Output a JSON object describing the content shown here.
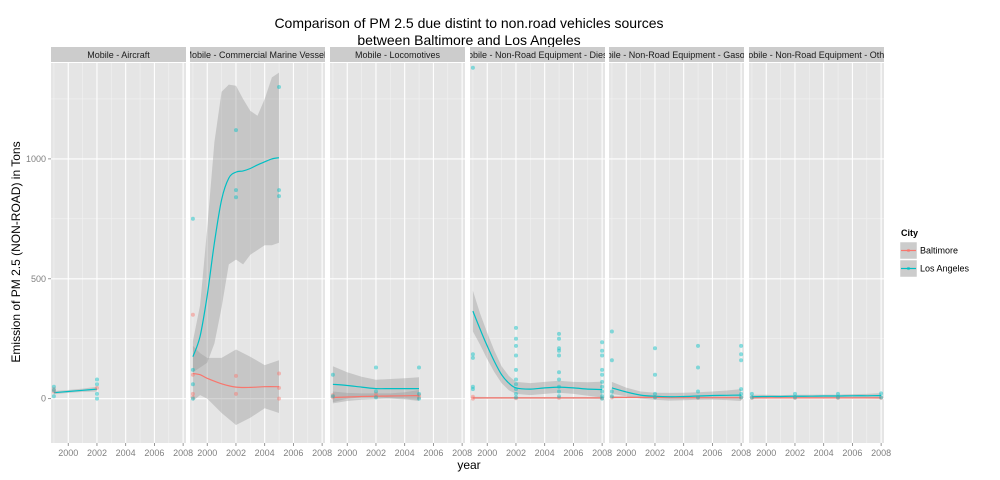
{
  "chart_data": {
    "type": "scatter",
    "title_line1": "Comparison of PM 2.5 due distint to non.road vehicles sources",
    "title_line2": "between Baltimore and Los Angeles",
    "xlabel": "year",
    "ylabel": "Emission of PM 2.5 (NON-ROAD) in Tons",
    "xlim": [
      1998.8,
      2008.2
    ],
    "ylim": [
      -185,
      1400
    ],
    "x_ticks": [
      2000,
      2002,
      2004,
      2006,
      2008
    ],
    "x_tick_labels": [
      "2000",
      "2002",
      "2004",
      "2006",
      "2008"
    ],
    "y_ticks": [
      0,
      500,
      1000
    ],
    "y_tick_labels": [
      "0",
      "500",
      "1000"
    ],
    "grid": true,
    "legend": {
      "title": "City",
      "placement": "right",
      "entries": [
        {
          "label": "Baltimore",
          "color": "#F8766D"
        },
        {
          "label": "Los Angeles",
          "color": "#00BFC4"
        }
      ]
    },
    "colors": {
      "baltimore": "#F8766D",
      "los_angeles": "#00BFC4",
      "ribbon": "#999999",
      "panel_bg": "#E5E5E5",
      "strip_bg": "#CCCCCC"
    },
    "panels": [
      {
        "strip": "Mobile - Aircraft",
        "points": {
          "baltimore": [
            [
              1999,
              40
            ],
            [
              1999,
              30
            ],
            [
              2002,
              45
            ]
          ],
          "los_angeles": [
            [
              1999,
              50
            ],
            [
              1999,
              35
            ],
            [
              1999,
              10
            ],
            [
              2002,
              80
            ],
            [
              2002,
              60
            ],
            [
              2002,
              20
            ],
            [
              2002,
              0
            ]
          ]
        },
        "smooth": {
          "los_angeles": {
            "x": [
              1999,
              2000,
              2001,
              2002
            ],
            "y": [
              25,
              30,
              35,
              40
            ],
            "lo": [
              18,
              24,
              28,
              30
            ],
            "hi": [
              32,
              36,
              42,
              50
            ]
          }
        }
      },
      {
        "strip": "Mobile - Commercial Marine Vessels",
        "points": {
          "baltimore": [
            [
              1999,
              350
            ],
            [
              1999,
              100
            ],
            [
              1999,
              20
            ],
            [
              1999,
              5
            ],
            [
              2002,
              95
            ],
            [
              2002,
              20
            ],
            [
              2005,
              105
            ],
            [
              2005,
              45
            ],
            [
              2005,
              0
            ]
          ],
          "los_angeles": [
            [
              1999,
              750
            ],
            [
              1999,
              120
            ],
            [
              1999,
              60
            ],
            [
              1999,
              0
            ],
            [
              2002,
              1120
            ],
            [
              2002,
              870
            ],
            [
              2002,
              840
            ],
            [
              2005,
              1300
            ],
            [
              2005,
              870
            ],
            [
              2005,
              845
            ]
          ]
        },
        "smooth": {
          "baltimore": {
            "x": [
              1999,
              1999.5,
              2000,
              2001,
              2002,
              2003,
              2004,
              2005
            ],
            "y": [
              105,
              100,
              85,
              62,
              48,
              47,
              50,
              50
            ],
            "lo": [
              -10,
              15,
              0,
              -60,
              -110,
              -80,
              -40,
              -60
            ],
            "hi": [
              220,
              190,
              170,
              170,
              205,
              175,
              140,
              160
            ]
          },
          "los_angeles": {
            "x": [
              1999,
              1999.5,
              2000,
              2000.5,
              2001,
              2001.5,
              2002,
              2002.5,
              2003,
              2003.5,
              2004,
              2004.5,
              2005
            ],
            "y": [
              175,
              260,
              430,
              650,
              830,
              920,
              945,
              950,
              960,
              975,
              988,
              1000,
              1005
            ],
            "lo": [
              110,
              130,
              150,
              230,
              380,
              560,
              580,
              560,
              600,
              620,
              640,
              640,
              650
            ],
            "hi": [
              240,
              390,
              710,
              1070,
              1280,
              1310,
              1305,
              1250,
              1200,
              1180,
              1250,
              1340,
              1360
            ]
          }
        }
      },
      {
        "strip": "Mobile - Locomotives",
        "points": {
          "baltimore": [
            [
              1999,
              15
            ],
            [
              1999,
              5
            ],
            [
              2002,
              20
            ],
            [
              2002,
              10
            ],
            [
              2005,
              15
            ],
            [
              2005,
              5
            ]
          ],
          "los_angeles": [
            [
              1999,
              100
            ],
            [
              1999,
              10
            ],
            [
              2002,
              130
            ],
            [
              2002,
              30
            ],
            [
              2002,
              5
            ],
            [
              2005,
              130
            ],
            [
              2005,
              20
            ],
            [
              2005,
              0
            ]
          ]
        },
        "smooth": {
          "baltimore": {
            "x": [
              1999,
              2000,
              2001,
              2002,
              2003,
              2004,
              2005
            ],
            "y": [
              5,
              7,
              9,
              10,
              11,
              12,
              13
            ],
            "lo": [
              -20,
              -10,
              -5,
              -2,
              0,
              -3,
              -10
            ],
            "hi": [
              30,
              24,
              22,
              22,
              22,
              27,
              36
            ]
          },
          "los_angeles": {
            "x": [
              1999,
              2000,
              2001,
              2002,
              2003,
              2004,
              2005
            ],
            "y": [
              60,
              55,
              48,
              42,
              42,
              42,
              42
            ],
            "lo": [
              -15,
              0,
              5,
              5,
              2,
              0,
              -5
            ],
            "hi": [
              135,
              110,
              91,
              79,
              82,
              85,
              89
            ]
          }
        }
      },
      {
        "strip": "Mobile - Non-Road Equipment - Diesel",
        "points": {
          "baltimore": [
            [
              1999,
              0
            ],
            [
              1999,
              8
            ],
            [
              2002,
              2
            ],
            [
              2005,
              3
            ],
            [
              2008,
              2
            ]
          ],
          "los_angeles": [
            [
              1999,
              1380
            ],
            [
              1999,
              185
            ],
            [
              1999,
              170
            ],
            [
              1999,
              50
            ],
            [
              1999,
              40
            ],
            [
              2002,
              295
            ],
            [
              2002,
              250
            ],
            [
              2002,
              220
            ],
            [
              2002,
              180
            ],
            [
              2002,
              120
            ],
            [
              2002,
              80
            ],
            [
              2002,
              60
            ],
            [
              2002,
              40
            ],
            [
              2002,
              20
            ],
            [
              2002,
              5
            ],
            [
              2005,
              270
            ],
            [
              2005,
              250
            ],
            [
              2005,
              210
            ],
            [
              2005,
              200
            ],
            [
              2005,
              180
            ],
            [
              2005,
              110
            ],
            [
              2005,
              80
            ],
            [
              2005,
              50
            ],
            [
              2005,
              30
            ],
            [
              2005,
              10
            ],
            [
              2008,
              235
            ],
            [
              2008,
              200
            ],
            [
              2008,
              180
            ],
            [
              2008,
              120
            ],
            [
              2008,
              100
            ],
            [
              2008,
              70
            ],
            [
              2008,
              50
            ],
            [
              2008,
              30
            ],
            [
              2008,
              10
            ],
            [
              2008,
              0
            ]
          ]
        },
        "smooth": {
          "baltimore": {
            "x": [
              1999,
              2000,
              2001,
              2002,
              2003,
              2004,
              2005,
              2006,
              2007,
              2008
            ],
            "y": [
              3,
              3,
              3,
              3,
              3,
              3,
              3,
              3,
              3,
              3
            ],
            "lo": [
              -2,
              -1,
              -1,
              -1,
              -1,
              -1,
              -1,
              -1,
              -1,
              -2
            ],
            "hi": [
              8,
              7,
              7,
              7,
              7,
              7,
              7,
              7,
              7,
              8
            ]
          },
          "los_angeles": {
            "x": [
              1999,
              1999.5,
              2000,
              2000.5,
              2001,
              2001.5,
              2002,
              2003,
              2004,
              2005,
              2006,
              2007,
              2008
            ],
            "y": [
              365,
              290,
              220,
              155,
              100,
              65,
              45,
              40,
              45,
              48,
              45,
              40,
              38
            ],
            "lo": [
              280,
              225,
              165,
              110,
              65,
              35,
              20,
              15,
              20,
              25,
              20,
              12,
              5
            ],
            "hi": [
              450,
              355,
              275,
              200,
              135,
              95,
              70,
              65,
              70,
              75,
              70,
              68,
              71
            ]
          }
        }
      },
      {
        "strip": "Mobile - Non-Road Equipment - Gasoline",
        "points": {
          "baltimore": [
            [
              1999,
              5
            ],
            [
              2002,
              5
            ],
            [
              2005,
              4
            ],
            [
              2008,
              4
            ]
          ],
          "los_angeles": [
            [
              1999,
              280
            ],
            [
              1999,
              160
            ],
            [
              1999,
              30
            ],
            [
              1999,
              10
            ],
            [
              2002,
              210
            ],
            [
              2002,
              100
            ],
            [
              2002,
              20
            ],
            [
              2002,
              5
            ],
            [
              2005,
              220
            ],
            [
              2005,
              130
            ],
            [
              2005,
              30
            ],
            [
              2005,
              5
            ],
            [
              2008,
              220
            ],
            [
              2008,
              185
            ],
            [
              2008,
              160
            ],
            [
              2008,
              40
            ],
            [
              2008,
              20
            ],
            [
              2008,
              5
            ]
          ]
        },
        "smooth": {
          "baltimore": {
            "x": [
              1999,
              2000,
              2001,
              2002,
              2003,
              2004,
              2005,
              2006,
              2007,
              2008
            ],
            "y": [
              5,
              5,
              5,
              5,
              4,
              4,
              4,
              4,
              4,
              4
            ],
            "lo": [
              0,
              1,
              1,
              1,
              0,
              0,
              0,
              0,
              0,
              0
            ],
            "hi": [
              10,
              9,
              9,
              9,
              8,
              8,
              8,
              8,
              8,
              8
            ]
          },
          "los_angeles": {
            "x": [
              1999,
              2000,
              2001,
              2002,
              2003,
              2004,
              2005,
              2006,
              2007,
              2008
            ],
            "y": [
              45,
              28,
              15,
              10,
              8,
              9,
              11,
              13,
              14,
              15
            ],
            "lo": [
              20,
              10,
              0,
              -5,
              -8,
              -7,
              -5,
              -4,
              -6,
              -10
            ],
            "hi": [
              70,
              46,
              30,
              25,
              24,
              25,
              27,
              30,
              34,
              40
            ]
          }
        }
      },
      {
        "strip": "Mobile - Non-Road Equipment - Other",
        "points": {
          "baltimore": [
            [
              1999,
              3
            ],
            [
              2002,
              3
            ],
            [
              2005,
              3
            ],
            [
              2008,
              3
            ]
          ],
          "los_angeles": [
            [
              1999,
              20
            ],
            [
              1999,
              5
            ],
            [
              2002,
              20
            ],
            [
              2002,
              5
            ],
            [
              2005,
              20
            ],
            [
              2005,
              5
            ],
            [
              2008,
              22
            ],
            [
              2008,
              5
            ]
          ]
        },
        "smooth": {
          "baltimore": {
            "x": [
              1999,
              2000,
              2001,
              2002,
              2003,
              2004,
              2005,
              2006,
              2007,
              2008
            ],
            "y": [
              3,
              3,
              3,
              3,
              3,
              3,
              3,
              3,
              3,
              3
            ],
            "lo": [
              -1,
              0,
              0,
              0,
              0,
              0,
              0,
              0,
              0,
              -1
            ],
            "hi": [
              7,
              6,
              6,
              6,
              6,
              6,
              6,
              6,
              6,
              7
            ]
          },
          "los_angeles": {
            "x": [
              1999,
              2000,
              2001,
              2002,
              2003,
              2004,
              2005,
              2006,
              2007,
              2008
            ],
            "y": [
              8,
              9,
              9,
              10,
              10,
              11,
              11,
              12,
              12,
              13
            ],
            "lo": [
              0,
              2,
              3,
              4,
              4,
              5,
              5,
              5,
              4,
              3
            ],
            "hi": [
              16,
              16,
              15,
              16,
              16,
              17,
              17,
              19,
              20,
              23
            ]
          }
        }
      }
    ]
  }
}
